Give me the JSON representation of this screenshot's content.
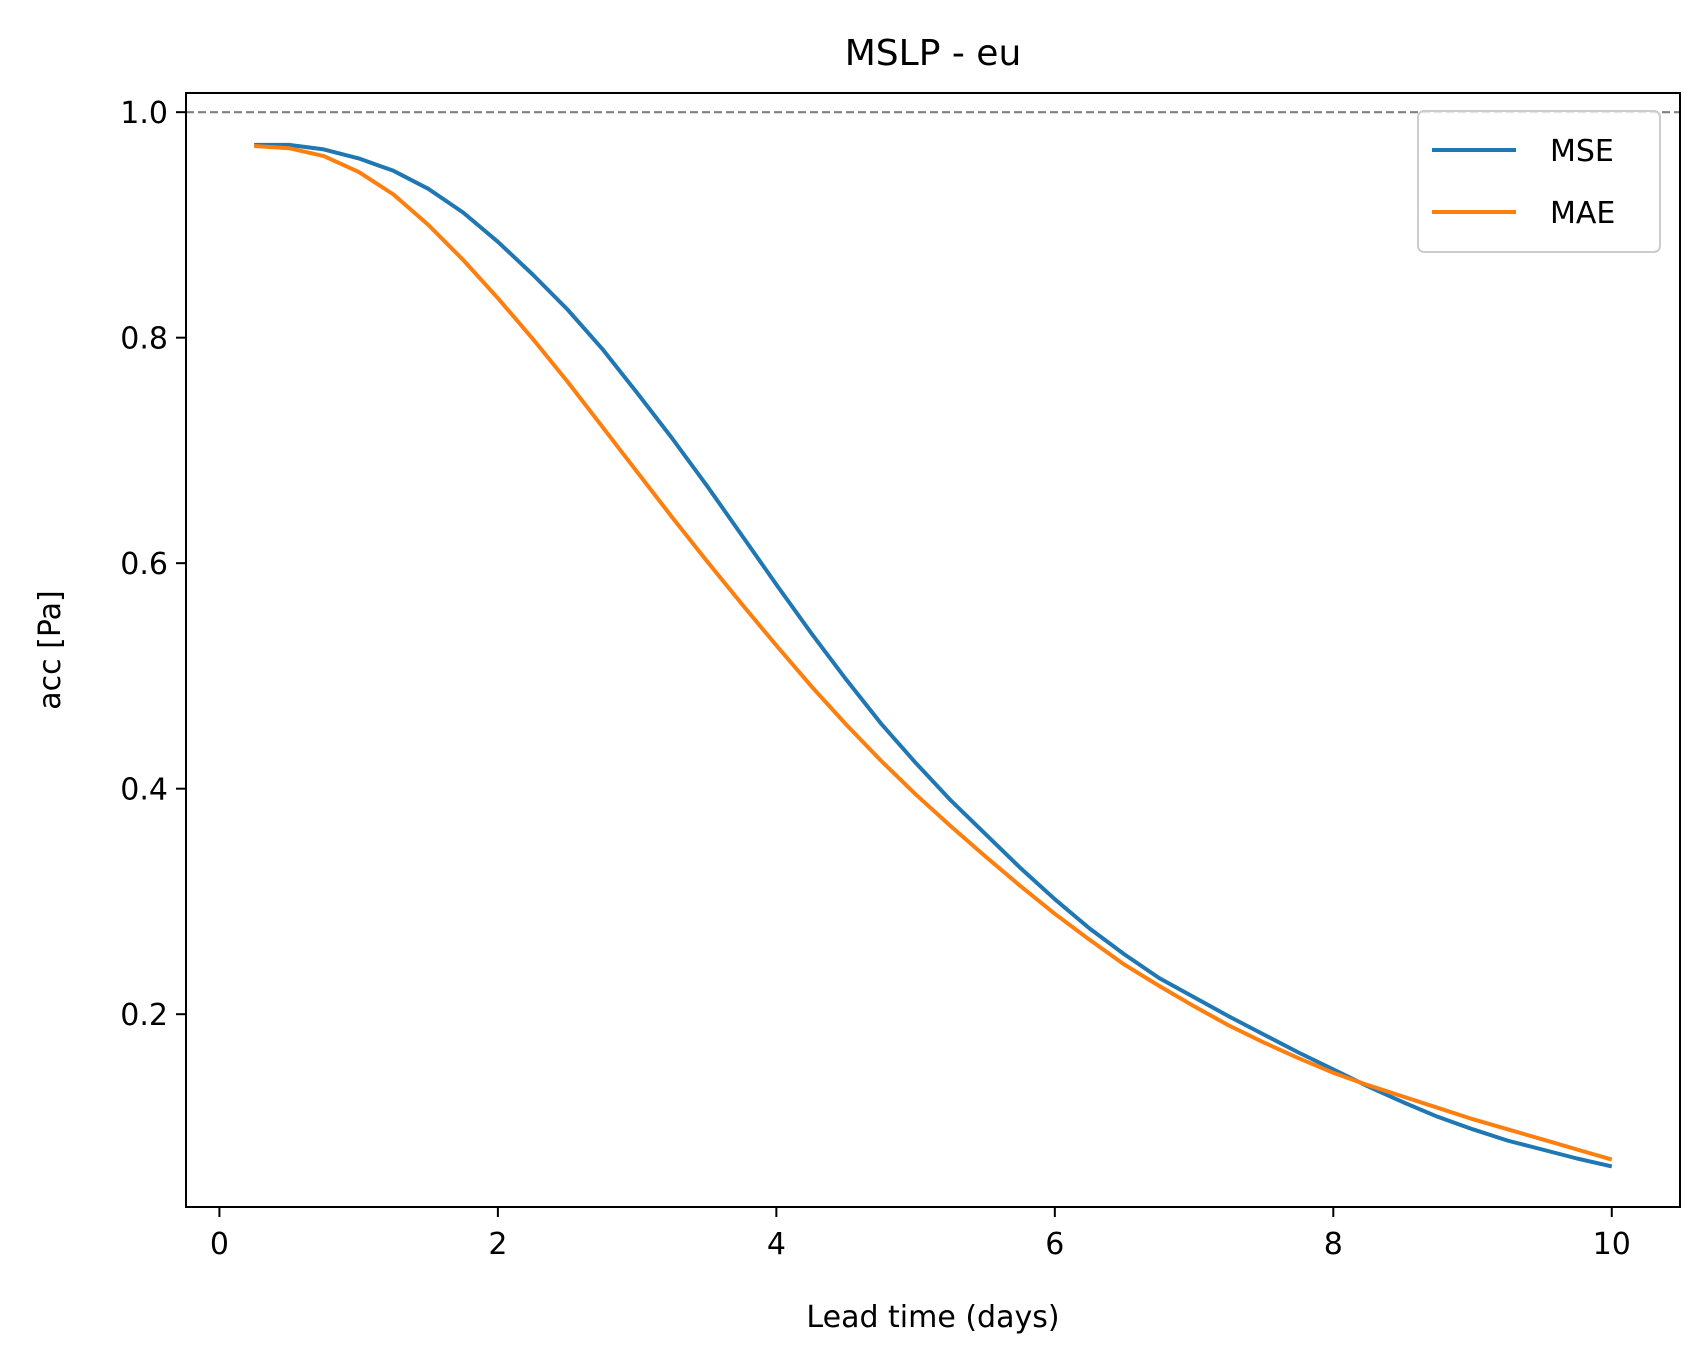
{
  "chart_data": {
    "type": "line",
    "title": "MSLP - eu",
    "xlabel": "Lead time (days)",
    "ylabel": "acc [Pa]",
    "xlim": [
      -0.24,
      10.49
    ],
    "ylim": [
      0.029,
      1.017
    ],
    "x_ticks": [
      0,
      2,
      4,
      6,
      8,
      10
    ],
    "x_tick_labels": [
      "0",
      "2",
      "4",
      "6",
      "8",
      "10"
    ],
    "y_ticks": [
      0.2,
      0.4,
      0.6,
      0.8,
      1.0
    ],
    "y_tick_labels": [
      "0.2",
      "0.4",
      "0.6",
      "0.8",
      "1.0"
    ],
    "grid": false,
    "legend_position": "top-right",
    "reference_line": {
      "y": 1.0,
      "style": "dashed",
      "color": "#808080"
    },
    "x": [
      0.25,
      0.5,
      0.75,
      1.0,
      1.25,
      1.5,
      1.75,
      2.0,
      2.25,
      2.5,
      2.75,
      3.0,
      3.25,
      3.5,
      3.75,
      4.0,
      4.25,
      4.5,
      4.75,
      5.0,
      5.25,
      5.5,
      5.75,
      6.0,
      6.25,
      6.5,
      6.75,
      7.0,
      7.25,
      7.5,
      7.75,
      8.0,
      8.25,
      8.5,
      8.75,
      9.0,
      9.25,
      9.5,
      9.75,
      10.0
    ],
    "series": [
      {
        "name": "MSE",
        "color": "#1f77b4",
        "values": [
          0.971,
          0.971,
          0.967,
          0.959,
          0.948,
          0.932,
          0.911,
          0.885,
          0.856,
          0.825,
          0.79,
          0.751,
          0.711,
          0.669,
          0.625,
          0.581,
          0.538,
          0.497,
          0.458,
          0.423,
          0.39,
          0.36,
          0.33,
          0.302,
          0.276,
          0.253,
          0.232,
          0.215,
          0.198,
          0.182,
          0.166,
          0.151,
          0.136,
          0.122,
          0.109,
          0.098,
          0.088,
          0.08,
          0.072,
          0.065
        ]
      },
      {
        "name": "MAE",
        "color": "#ff7f0e",
        "values": [
          0.97,
          0.968,
          0.961,
          0.947,
          0.927,
          0.9,
          0.869,
          0.835,
          0.799,
          0.761,
          0.721,
          0.681,
          0.641,
          0.602,
          0.564,
          0.527,
          0.491,
          0.457,
          0.425,
          0.395,
          0.367,
          0.34,
          0.314,
          0.289,
          0.266,
          0.244,
          0.225,
          0.207,
          0.19,
          0.175,
          0.161,
          0.148,
          0.137,
          0.127,
          0.117,
          0.107,
          0.098,
          0.089,
          0.08,
          0.071
        ]
      }
    ]
  }
}
